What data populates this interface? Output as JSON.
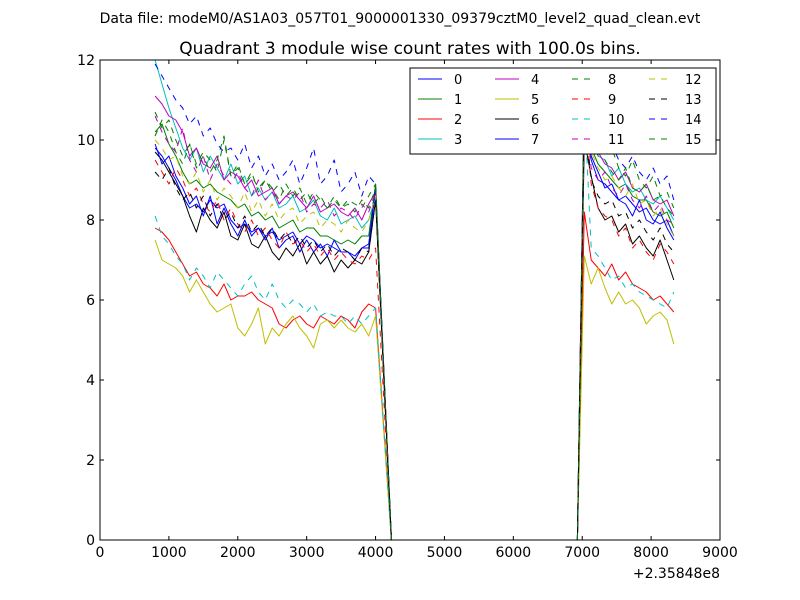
{
  "suptitle": "Data file: modeM0/AS1A03_057T01_9000001330_09379cztM0_level2_quad_clean.evt",
  "chart_data": {
    "type": "line",
    "title": "Quadrant 3 module wise count rates with 100.0s bins.",
    "xlabel": "",
    "ylabel": "",
    "x_offset_label": "+2.35848e8",
    "xlim": [
      0,
      9000
    ],
    "ylim": [
      0,
      12
    ],
    "xticks": [
      0,
      1000,
      2000,
      3000,
      4000,
      5000,
      6000,
      7000,
      8000,
      9000
    ],
    "yticks": [
      0,
      2,
      4,
      6,
      8,
      10,
      12
    ],
    "legend_position": "top-right",
    "gap": {
      "drop_start": 4000,
      "zero_start": 4230,
      "zero_end": 6930,
      "recover": 7030
    },
    "x_segment1": [
      800,
      900,
      1000,
      1100,
      1200,
      1300,
      1400,
      1500,
      1600,
      1700,
      1800,
      1900,
      2000,
      2100,
      2200,
      2300,
      2400,
      2500,
      2600,
      2700,
      2800,
      2900,
      3000,
      3100,
      3200,
      3300,
      3400,
      3500,
      3600,
      3700,
      3800,
      3900,
      4000
    ],
    "x_segment2": [
      7030,
      7130,
      7230,
      7330,
      7430,
      7530,
      7630,
      7730,
      7830,
      7930,
      8030,
      8130,
      8230,
      8330
    ],
    "series": [
      {
        "name": "0",
        "color": "#0000ff",
        "style": "solid",
        "seg1": [
          9.8,
          9.6,
          9.3,
          9.0,
          8.6,
          8.3,
          8.4,
          8.2,
          8.5,
          8.3,
          8.4,
          8.0,
          7.8,
          7.9,
          7.7,
          7.8,
          7.6,
          7.7,
          7.5,
          7.6,
          7.7,
          7.4,
          7.6,
          7.5,
          7.3,
          7.4,
          7.3,
          7.2,
          7.2,
          7.1,
          7.3,
          7.3,
          8.8
        ],
        "seg2": [
          10.5,
          9.5,
          9.0,
          8.9,
          8.7,
          8.5,
          8.6,
          8.4,
          8.2,
          8.3,
          8.0,
          7.9,
          8.0,
          7.6
        ]
      },
      {
        "name": "1",
        "color": "#008000",
        "style": "solid",
        "seg1": [
          10.2,
          10.4,
          9.9,
          9.6,
          9.2,
          8.9,
          9.0,
          8.8,
          8.9,
          8.7,
          8.6,
          8.5,
          8.3,
          8.4,
          8.1,
          8.2,
          8.0,
          8.1,
          7.8,
          7.9,
          8.0,
          7.7,
          7.8,
          7.8,
          7.6,
          7.6,
          7.5,
          7.4,
          7.5,
          7.4,
          7.6,
          7.6,
          8.9
        ],
        "seg2": [
          11.0,
          9.8,
          9.4,
          9.2,
          9.0,
          8.8,
          8.9,
          8.6,
          8.5,
          8.5,
          8.2,
          8.1,
          8.2,
          7.8
        ]
      },
      {
        "name": "2",
        "color": "#ff0000",
        "style": "solid",
        "seg1": [
          7.8,
          7.7,
          7.5,
          7.2,
          6.9,
          6.6,
          6.7,
          6.4,
          6.3,
          6.1,
          6.4,
          6.0,
          6.1,
          6.1,
          6.2,
          6.0,
          5.9,
          5.8,
          5.4,
          5.3,
          5.5,
          5.6,
          5.4,
          5.3,
          5.6,
          5.5,
          5.4,
          5.6,
          5.5,
          5.3,
          5.7,
          5.9,
          5.8
        ],
        "seg2": [
          8.2,
          7.0,
          6.8,
          6.6,
          6.9,
          6.5,
          6.7,
          6.4,
          6.3,
          6.2,
          6.0,
          6.1,
          5.9,
          5.7
        ]
      },
      {
        "name": "3",
        "color": "#00bfbf",
        "style": "solid",
        "seg1": [
          12.0,
          11.4,
          10.8,
          10.3,
          9.8,
          9.5,
          9.8,
          9.2,
          9.6,
          9.3,
          9.0,
          9.4,
          8.9,
          9.1,
          8.6,
          8.8,
          8.5,
          8.7,
          8.3,
          8.4,
          8.6,
          8.2,
          8.3,
          8.5,
          8.1,
          8.0,
          8.3,
          7.9,
          8.0,
          8.1,
          7.8,
          8.0,
          8.6
        ],
        "seg2": [
          10.8,
          10.2,
          9.6,
          9.5,
          9.1,
          9.3,
          8.9,
          8.7,
          8.8,
          8.5,
          8.4,
          8.6,
          8.3,
          8.0
        ]
      },
      {
        "name": "4",
        "color": "#bf00bf",
        "style": "solid",
        "seg1": [
          11.1,
          10.9,
          10.6,
          10.5,
          10.2,
          9.6,
          9.8,
          9.4,
          9.3,
          9.6,
          9.0,
          9.2,
          9.1,
          8.8,
          9.0,
          8.6,
          8.7,
          8.8,
          8.4,
          8.6,
          8.7,
          8.5,
          8.3,
          8.6,
          8.2,
          8.3,
          8.4,
          8.2,
          8.1,
          8.3,
          8.0,
          8.4,
          8.7
        ],
        "seg2": [
          11.2,
          10.3,
          9.7,
          9.4,
          9.3,
          9.0,
          9.2,
          8.8,
          8.7,
          8.9,
          8.5,
          8.4,
          8.5,
          8.1
        ]
      },
      {
        "name": "5",
        "color": "#bfbf00",
        "style": "solid",
        "seg1": [
          7.5,
          7.0,
          6.9,
          6.8,
          6.6,
          6.2,
          6.5,
          6.2,
          5.9,
          5.7,
          5.8,
          5.9,
          5.3,
          5.1,
          5.4,
          5.8,
          4.9,
          5.3,
          5.1,
          5.4,
          5.6,
          5.3,
          5.1,
          4.8,
          5.4,
          5.5,
          5.3,
          5.5,
          5.3,
          5.2,
          5.4,
          5.1,
          5.6
        ],
        "seg2": [
          7.1,
          6.4,
          6.8,
          6.3,
          5.9,
          6.2,
          5.9,
          6.0,
          5.8,
          5.4,
          5.6,
          5.7,
          5.5,
          4.9
        ]
      },
      {
        "name": "6",
        "color": "#000000",
        "style": "solid",
        "seg1": [
          9.7,
          9.5,
          9.2,
          8.9,
          8.6,
          8.1,
          7.7,
          8.3,
          8.0,
          7.8,
          8.2,
          7.6,
          7.5,
          7.9,
          7.4,
          7.3,
          7.6,
          7.2,
          7.0,
          7.3,
          7.1,
          7.4,
          6.9,
          7.2,
          6.9,
          7.1,
          6.7,
          7.0,
          6.8,
          7.0,
          6.9,
          7.2,
          8.5
        ],
        "seg2": [
          10.0,
          9.1,
          8.3,
          8.0,
          8.1,
          7.7,
          7.9,
          7.4,
          7.6,
          7.3,
          7.1,
          7.5,
          7.0,
          6.5
        ]
      },
      {
        "name": "7",
        "color": "#0000ff",
        "style": "solid",
        "seg1": [
          9.9,
          9.4,
          9.6,
          9.1,
          8.8,
          8.4,
          8.6,
          8.1,
          8.6,
          7.9,
          8.3,
          7.9,
          7.6,
          8.0,
          7.6,
          7.8,
          7.5,
          7.8,
          7.3,
          7.5,
          7.6,
          7.2,
          7.5,
          7.2,
          7.4,
          7.1,
          7.5,
          7.2,
          7.2,
          7.0,
          7.3,
          7.4,
          8.8
        ],
        "seg2": [
          10.9,
          9.6,
          9.2,
          8.8,
          8.9,
          8.5,
          8.4,
          8.1,
          8.5,
          8.0,
          7.9,
          8.2,
          7.8,
          7.5
        ]
      },
      {
        "name": "8",
        "color": "#008000",
        "style": "dashed",
        "seg1": [
          10.1,
          10.5,
          10.2,
          9.7,
          9.4,
          9.9,
          9.3,
          9.6,
          9.2,
          9.5,
          10.1,
          9.1,
          9.4,
          8.9,
          9.2,
          8.7,
          9.0,
          8.8,
          8.5,
          8.9,
          8.6,
          8.8,
          8.4,
          8.7,
          8.5,
          8.3,
          8.6,
          8.3,
          8.5,
          8.4,
          8.3,
          8.6,
          8.9
        ],
        "seg2": [
          11.1,
          10.4,
          9.9,
          9.6,
          9.8,
          9.3,
          9.1,
          9.5,
          9.0,
          8.8,
          9.1,
          8.6,
          8.7,
          8.3
        ]
      },
      {
        "name": "9",
        "color": "#ff0000",
        "style": "dashed",
        "seg1": [
          9.5,
          9.2,
          8.9,
          9.3,
          9.0,
          8.6,
          8.8,
          8.4,
          8.2,
          8.5,
          8.0,
          8.3,
          7.9,
          7.7,
          8.0,
          7.6,
          7.8,
          7.5,
          7.3,
          7.7,
          7.4,
          7.5,
          7.2,
          7.4,
          7.1,
          7.3,
          7.0,
          7.2,
          7.0,
          6.9,
          7.1,
          7.0,
          7.3
        ],
        "seg2": [
          10.8,
          8.9,
          8.3,
          8.1,
          8.0,
          7.6,
          7.8,
          7.3,
          7.5,
          7.2,
          7.0,
          7.4,
          7.2,
          6.9
        ]
      },
      {
        "name": "10",
        "color": "#00bfbf",
        "style": "dashed",
        "seg1": [
          8.1,
          7.6,
          7.4,
          7.1,
          6.9,
          6.5,
          6.8,
          6.6,
          6.3,
          6.7,
          6.5,
          6.3,
          6.1,
          6.4,
          6.6,
          6.2,
          6.0,
          6.4,
          6.0,
          5.8,
          6.0,
          5.9,
          5.7,
          5.9,
          5.6,
          5.7,
          5.6,
          5.6,
          5.4,
          5.6,
          5.4,
          5.6,
          5.8
        ],
        "seg2": [
          10.9,
          7.3,
          7.1,
          6.8,
          6.5,
          6.6,
          6.3,
          6.4,
          6.2,
          6.1,
          6.0,
          5.9,
          5.8,
          6.2
        ]
      },
      {
        "name": "11",
        "color": "#bf00bf",
        "style": "dashed",
        "seg1": [
          10.6,
          10.2,
          9.9,
          9.7,
          10.3,
          9.5,
          9.2,
          9.6,
          9.0,
          9.4,
          9.1,
          8.9,
          9.2,
          8.8,
          8.6,
          9.0,
          8.5,
          8.7,
          8.4,
          8.6,
          8.5,
          8.7,
          8.2,
          8.4,
          8.3,
          8.5,
          8.1,
          8.3,
          8.2,
          8.0,
          8.4,
          8.2,
          8.7
        ],
        "seg2": [
          11.1,
          9.3,
          9.0,
          9.2,
          8.8,
          8.6,
          8.9,
          8.5,
          8.3,
          8.6,
          8.2,
          8.4,
          8.0,
          7.9
        ]
      },
      {
        "name": "12",
        "color": "#bfbf00",
        "style": "dashed",
        "seg1": [
          10.0,
          9.8,
          9.5,
          9.6,
          9.1,
          8.9,
          9.2,
          8.7,
          9.0,
          8.5,
          8.8,
          8.6,
          8.3,
          8.7,
          8.2,
          8.5,
          8.1,
          8.4,
          8.0,
          8.2,
          8.3,
          7.9,
          8.1,
          8.2,
          7.8,
          8.0,
          7.9,
          7.7,
          8.0,
          7.8,
          7.7,
          8.0,
          8.6
        ],
        "seg2": [
          10.6,
          9.7,
          9.3,
          9.0,
          9.1,
          8.8,
          8.6,
          8.9,
          8.4,
          8.5,
          8.1,
          8.3,
          7.9,
          7.6
        ]
      },
      {
        "name": "13",
        "color": "#000000",
        "style": "dashed",
        "seg1": [
          9.2,
          9.0,
          9.3,
          8.8,
          8.5,
          8.7,
          8.3,
          8.6,
          8.1,
          8.4,
          8.0,
          8.2,
          7.8,
          8.1,
          7.7,
          7.9,
          7.6,
          7.8,
          7.5,
          7.7,
          7.4,
          7.6,
          7.3,
          7.5,
          7.2,
          7.4,
          7.1,
          7.3,
          7.2,
          7.0,
          7.3,
          7.2,
          8.5
        ],
        "seg2": [
          10.7,
          9.0,
          8.6,
          8.4,
          8.5,
          8.1,
          8.2,
          7.8,
          8.0,
          7.7,
          7.5,
          7.8,
          7.4,
          7.2
        ]
      },
      {
        "name": "14",
        "color": "#0000ff",
        "style": "dashed",
        "seg1": [
          11.9,
          11.6,
          11.3,
          11.0,
          10.8,
          10.4,
          10.6,
          10.1,
          10.3,
          9.9,
          9.7,
          9.8,
          9.5,
          9.9,
          9.3,
          9.6,
          9.1,
          9.4,
          9.0,
          9.2,
          9.5,
          8.9,
          9.3,
          9.8,
          8.9,
          9.1,
          9.5,
          8.7,
          8.9,
          9.2,
          8.6,
          9.1,
          8.9
        ],
        "seg2": [
          11.3,
          10.5,
          10.0,
          9.7,
          9.9,
          9.5,
          9.3,
          9.6,
          9.2,
          9.0,
          9.3,
          8.9,
          9.1,
          8.5
        ]
      },
      {
        "name": "15",
        "color": "#008000",
        "style": "dashed",
        "seg1": [
          10.7,
          10.3,
          10.5,
          10.0,
          9.6,
          9.9,
          9.4,
          9.7,
          9.5,
          9.2,
          10.0,
          9.1,
          9.3,
          8.9,
          9.1,
          8.8,
          9.0,
          8.7,
          8.9,
          8.6,
          8.8,
          8.5,
          8.7,
          8.4,
          8.6,
          8.3,
          8.5,
          8.3,
          8.4,
          8.2,
          8.5,
          8.3,
          8.8
        ],
        "seg2": [
          11.0,
          10.1,
          9.6,
          9.5,
          9.2,
          9.0,
          9.3,
          8.8,
          8.7,
          8.9,
          8.5,
          8.6,
          8.3,
          8.1
        ]
      }
    ]
  }
}
